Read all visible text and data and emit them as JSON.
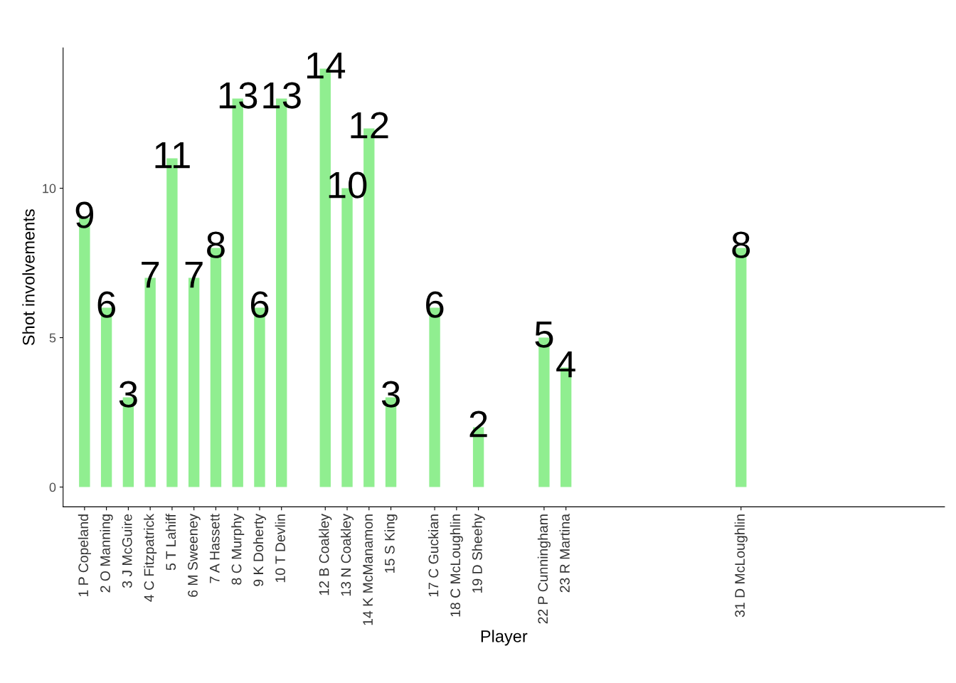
{
  "chart_data": {
    "type": "bar",
    "xlabel": "Player",
    "ylabel": "Shot involvements",
    "x": [
      1,
      2,
      3,
      4,
      5,
      6,
      7,
      8,
      9,
      10,
      12,
      13,
      14,
      15,
      17,
      18,
      19,
      22,
      23,
      31
    ],
    "values": [
      9,
      6,
      3,
      7,
      11,
      7,
      8,
      13,
      6,
      13,
      14,
      10,
      12,
      3,
      6,
      null,
      2,
      5,
      4,
      8
    ],
    "color": "#90ee90",
    "data_labels": true,
    "grid": false,
    "xlim": [
      0.02,
      40.3
    ],
    "ylim": [
      -0.66,
      14.7
    ],
    "xticks": [
      {
        "value": 1,
        "label": "1 P Copeland"
      },
      {
        "value": 2,
        "label": "2 O Manning"
      },
      {
        "value": 3,
        "label": "3 J McGuire"
      },
      {
        "value": 4,
        "label": "4 C Fitzpatrick"
      },
      {
        "value": 5,
        "label": "5 T Lahiff"
      },
      {
        "value": 6,
        "label": "6 M Sweeney"
      },
      {
        "value": 7,
        "label": "7 A Hassett"
      },
      {
        "value": 8,
        "label": "8 C Murphy"
      },
      {
        "value": 9,
        "label": "9 K Doherty"
      },
      {
        "value": 10,
        "label": "10 T Devlin"
      },
      {
        "value": 12,
        "label": "12 B Coakley"
      },
      {
        "value": 13,
        "label": "13 N Coakley"
      },
      {
        "value": 14,
        "label": "14 K McManamon"
      },
      {
        "value": 15,
        "label": "15 S King"
      },
      {
        "value": 17,
        "label": "17 C Guckian"
      },
      {
        "value": 18,
        "label": "18 C McLoughlin"
      },
      {
        "value": 19,
        "label": "19 D Sheehy"
      },
      {
        "value": 22,
        "label": "22 P Cunningham"
      },
      {
        "value": 23,
        "label": "23 R Martina"
      },
      {
        "value": 31,
        "label": "31 D McLoughlin"
      }
    ],
    "yticks": [
      0,
      5,
      10
    ]
  }
}
